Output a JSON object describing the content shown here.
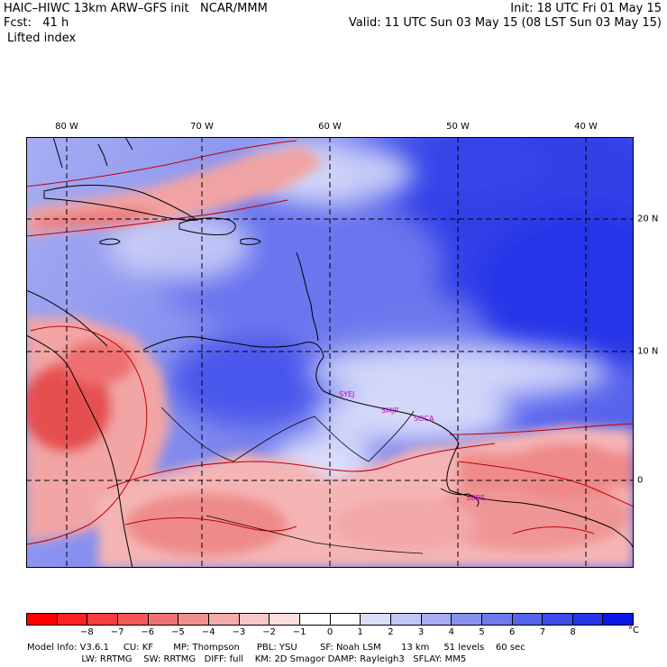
{
  "header": {
    "line1_left": "HAIC–HIWC 13km ARW–GFS init   NCAR/MMM",
    "line2_left": "Fcst:   41 h",
    "line3_left": "Lifted index",
    "line1_right": "Init: 18 UTC Fri 01 May 15",
    "line2_right": "Valid: 11 UTC Sun 03 May 15 (08 LST Sun 03 May 15)"
  },
  "map": {
    "lon_labels": [
      "80 W",
      "70 W",
      "60 W",
      "50 W",
      "40 W"
    ],
    "lat_labels": [
      "20 N",
      "10 N",
      "0"
    ],
    "stations": [
      "SYEJ",
      "SMJP",
      "SOCA",
      "SBBE"
    ],
    "colors": {
      "blue_dark": "#1f33e6",
      "blue_mid": "#6b78f0",
      "blue_light": "#c0c6f5",
      "white": "#ffffff",
      "pink_light": "#f5bcbc",
      "red_mid": "#ef7b7b",
      "red_dark": "#e24444",
      "coast": "#000000",
      "contour": "#c00000"
    }
  },
  "colorbar": {
    "colors": [
      "#ff0000",
      "#ff2222",
      "#fa3c3c",
      "#f55757",
      "#f07373",
      "#f29090",
      "#f4abab",
      "#f8c7c7",
      "#fcdede",
      "#ffffff",
      "#ffffff",
      "#dbdef8",
      "#c2c6f5",
      "#a5acf2",
      "#8891ef",
      "#6f79ee",
      "#5562ec",
      "#3c4bea",
      "#2535e8",
      "#0818e6"
    ],
    "labels": [
      "−8",
      "−7",
      "−6",
      "−5",
      "−4",
      "−3",
      "−2",
      "−1",
      "0",
      "1",
      "2",
      "3",
      "4",
      "5",
      "6",
      "7",
      "8"
    ],
    "unit": "°C"
  },
  "footer": {
    "line1": "Model Info: V3.6.1     CU: KF       MP: Thompson      PBL: YSU        SF: Noah LSM       13 km     51 levels    60 sec",
    "line2": "                   LW: RRTMG    SW: RRTMG   DIFF: full    KM: 2D Smagor DAMP: Rayleigh3   SFLAY: MM5"
  }
}
